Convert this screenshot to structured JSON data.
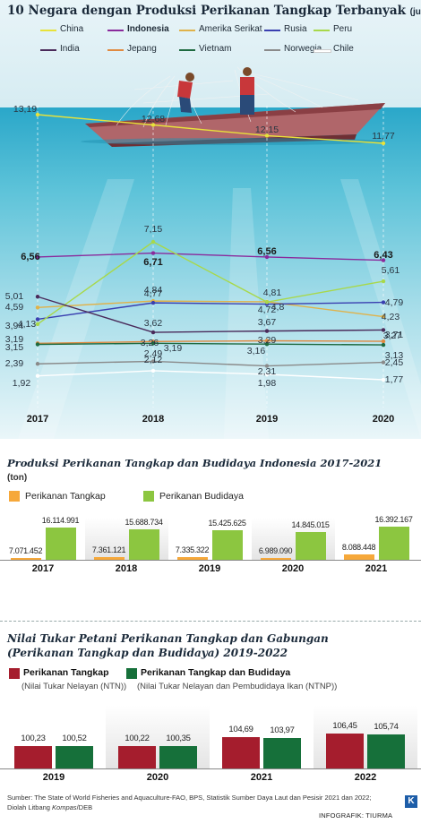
{
  "chart_data": [
    {
      "type": "line",
      "title": "10 Negara dengan Produksi Perikanan Tangkap Terbanyak",
      "unit": "(juta ton)",
      "x": [
        "2017",
        "2018",
        "2019",
        "2020"
      ],
      "series": [
        {
          "name": "China",
          "color": "#e8e23a",
          "values": [
            13.19,
            12.68,
            12.15,
            11.77
          ]
        },
        {
          "name": "Indonesia",
          "color": "#8a2a9c",
          "values": [
            6.56,
            6.71,
            6.56,
            6.43
          ]
        },
        {
          "name": "Amerika Serikat",
          "color": "#e0b24a",
          "values": [
            4.59,
            4.84,
            4.81,
            4.23
          ]
        },
        {
          "name": "Rusia",
          "color": "#3a3fb0",
          "values": [
            4.13,
            4.77,
            4.72,
            4.79
          ]
        },
        {
          "name": "Peru",
          "color": "#a8d84a",
          "values": [
            3.94,
            7.15,
            4.8,
            5.61
          ]
        },
        {
          "name": "India",
          "color": "#4a2a5a",
          "values": [
            5.01,
            3.62,
            3.67,
            3.71
          ]
        },
        {
          "name": "Jepang",
          "color": "#e08a40",
          "values": [
            3.19,
            3.26,
            3.29,
            3.27
          ]
        },
        {
          "name": "Vietnam",
          "color": "#1e6a40",
          "values": [
            3.15,
            3.19,
            3.16,
            3.13
          ]
        },
        {
          "name": "Norwegia",
          "color": "#8a8a8a",
          "values": [
            2.39,
            2.49,
            2.31,
            2.45
          ]
        },
        {
          "name": "Chile",
          "color": "#ffffff",
          "values": [
            1.92,
            2.12,
            1.98,
            1.77
          ]
        }
      ]
    },
    {
      "type": "bar",
      "title": "Produksi Perikanan Tangkap dan Budidaya Indonesia 2017-2021",
      "unit": "(ton)",
      "categories": [
        "2017",
        "2018",
        "2019",
        "2020",
        "2021"
      ],
      "series": [
        {
          "name": "Perikanan Tangkap",
          "color": "#f6a83a",
          "values": [
            7071452,
            7361121,
            7335322,
            6989090,
            8088448
          ],
          "labels": [
            "7.071.452",
            "7.361.121",
            "7.335.322",
            "6.989.090",
            "8.088.448"
          ]
        },
        {
          "name": "Perikanan Budidaya",
          "color": "#8cc640",
          "values": [
            16114991,
            15688734,
            15425625,
            14845015,
            16392167
          ],
          "labels": [
            "16.114.991",
            "15.688.734",
            "15.425.625",
            "14.845.015",
            "16.392.167"
          ]
        }
      ]
    },
    {
      "type": "bar",
      "title_line1": "Nilai Tukar Petani Perikanan Tangkap dan Gabungan",
      "title_line2": "(Perikanan Tangkap dan Budidaya) 2019-2022",
      "categories": [
        "2019",
        "2020",
        "2021",
        "2022"
      ],
      "series": [
        {
          "name": "Perikanan Tangkap",
          "note": "(Nilai Tukar Nelayan (NTN))",
          "color": "#a51d2d",
          "values": [
            100.23,
            100.22,
            104.69,
            106.45
          ],
          "labels": [
            "100,23",
            "100,22",
            "104,69",
            "106,45"
          ]
        },
        {
          "name": "Perikanan Tangkap dan Budidaya",
          "note": "(Nilai Tukar Nelayan dan Pembudidaya Ikan (NTNP))",
          "color": "#16703a",
          "values": [
            100.52,
            100.35,
            103.97,
            105.74
          ],
          "labels": [
            "100,52",
            "100,35",
            "103,97",
            "105,74"
          ]
        }
      ]
    }
  ],
  "line_labels": {
    "China": [
      "13,19",
      "12,68",
      "12,15",
      "11,77"
    ],
    "Indonesia": [
      "6,56",
      "6,71",
      "6,56",
      "6,43"
    ],
    "Amerika Serikat": [
      "4,59",
      "4,84",
      "4,81",
      "4,23"
    ],
    "Rusia": [
      "4,13",
      "4,77",
      "4,72",
      "4,79"
    ],
    "Peru": [
      "3,94",
      "7,15",
      "4,8",
      "5,61"
    ],
    "India": [
      "5,01",
      "3,62",
      "3,67",
      "3,71"
    ],
    "Jepang": [
      "3,19",
      "3,26",
      "3,29",
      "3,27"
    ],
    "Vietnam": [
      "3,15",
      "3,19",
      "3,16",
      "3,13"
    ],
    "Norwegia": [
      "2,39",
      "2,49",
      "2,31",
      "2,45"
    ],
    "Chile": [
      "1,92",
      "2,12",
      "1,98",
      "1,77"
    ]
  },
  "source_line1": "Sumber: The State of World Fisheries and Aquaculture-FAO, BPS, Statistik Sumber Daya Laut dan Pesisir 2021 dan 2022;",
  "source_line2_pre": "Diolah Litbang ",
  "source_line2_it": "Kompas",
  "source_line2_post": "/DEB",
  "credit": "INFOGRAFIK: TIURMA",
  "logo_letter": "K"
}
